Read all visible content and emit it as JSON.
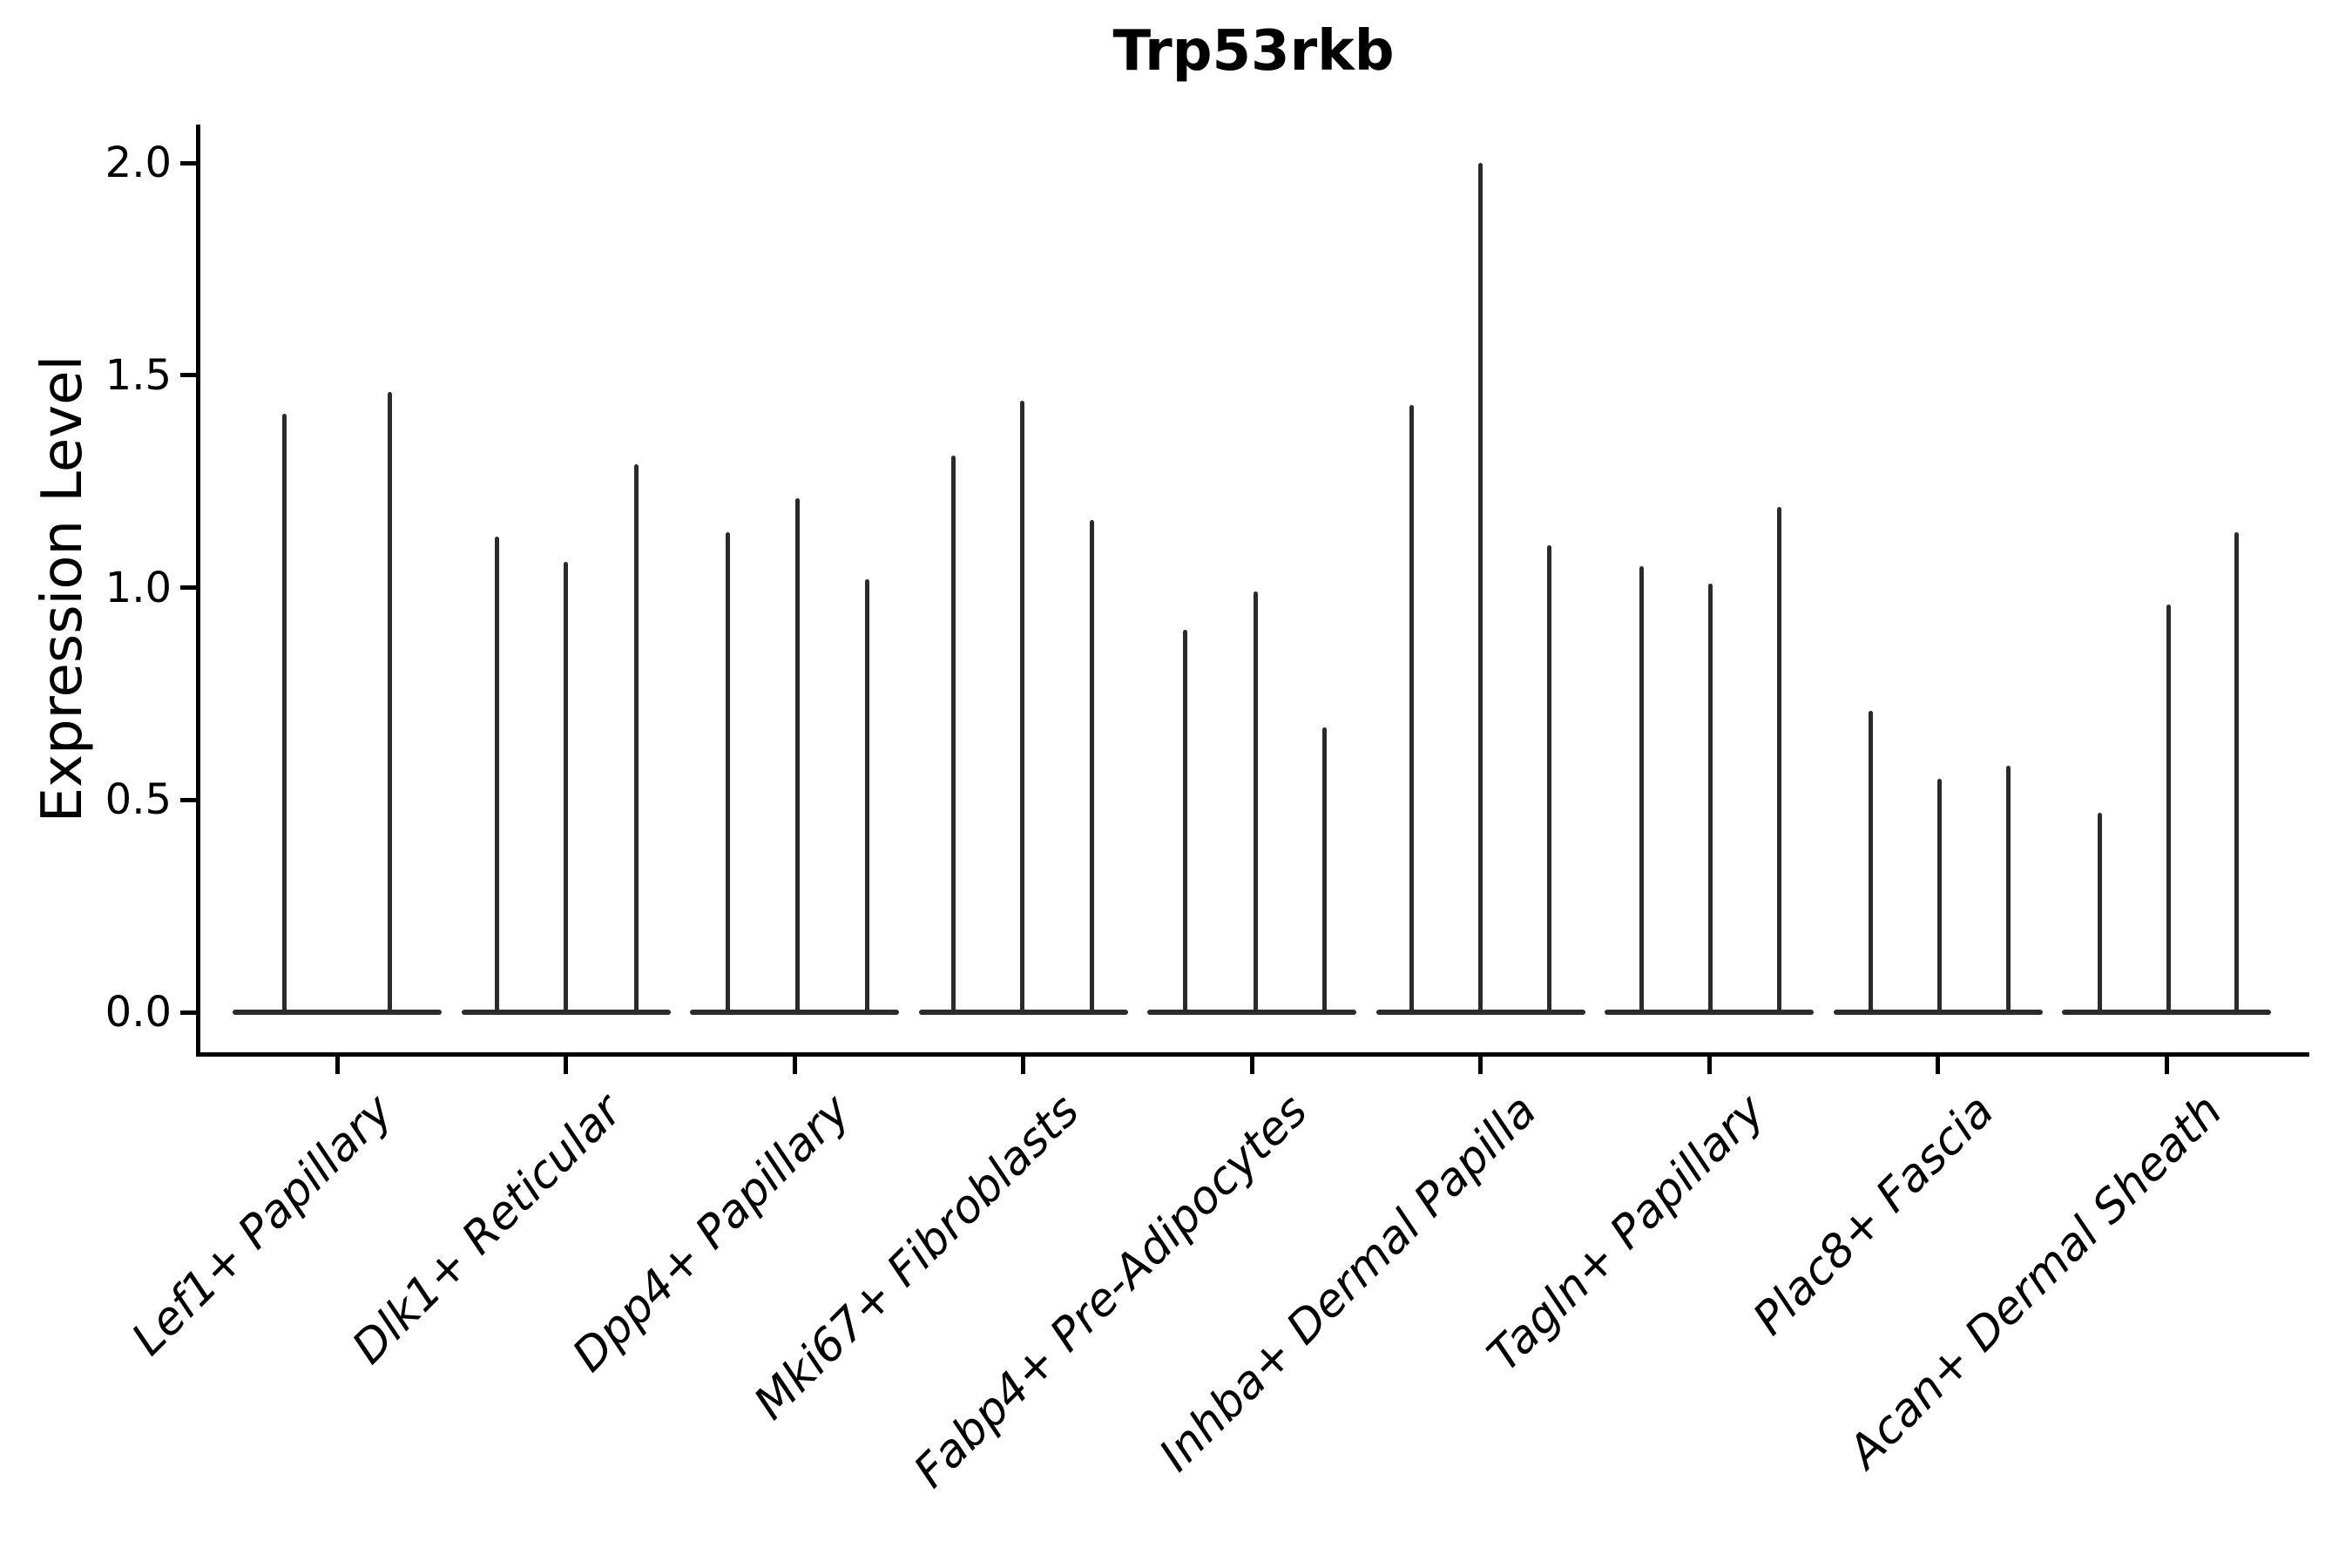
{
  "title": "Trp53rkb",
  "axes": {
    "ylabel": "Expression Level",
    "ytick_labels": [
      "0.0",
      "0.5",
      "1.0",
      "1.5",
      "2.0"
    ]
  },
  "colors": {
    "violin_line": "#2b2b2b",
    "axis": "#000000",
    "background": "#ffffff"
  },
  "chart_data": {
    "type": "violin",
    "title": "Trp53rkb",
    "xlabel": "",
    "ylabel": "Expression Level",
    "yticks": [
      0.0,
      0.5,
      1.0,
      1.5,
      2.0
    ],
    "ylim": [
      -0.1,
      2.09
    ],
    "grid": false,
    "legend_position": "none",
    "description": "Collapsed (needle-like) violins of gene expression; each category shows a flat base at 0 with thin spikes rising to the maximum expression of each sub-violin.",
    "categories": [
      "Lef1+ Papillary",
      "Dlk1+ Reticular",
      "Dpp4+ Papillary",
      "Mki67+ Fibroblasts",
      "Fabp4+ Pre-Adipocytes",
      "Inhba+ Dermal Papilla",
      "Tagln+ Papillary",
      "Plac8+ Fascia",
      "Acan+ Dermal Sheath"
    ],
    "groups": [
      {
        "label": "Lef1+ Papillary",
        "violins": [
          {
            "dx": -61,
            "max": 1.41
          },
          {
            "dx": 60,
            "max": 1.46
          }
        ]
      },
      {
        "label": "Dlk1+ Reticular",
        "violins": [
          {
            "dx": -79,
            "max": 1.12
          },
          {
            "dx": 0,
            "max": 1.06
          },
          {
            "dx": 81,
            "max": 1.29
          }
        ]
      },
      {
        "label": "Dpp4+ Papillary",
        "violins": [
          {
            "dx": -77,
            "max": 1.13
          },
          {
            "dx": 3,
            "max": 1.21
          },
          {
            "dx": 83,
            "max": 1.02
          }
        ]
      },
      {
        "label": "Mki67+ Fibroblasts",
        "violins": [
          {
            "dx": -80,
            "max": 1.31
          },
          {
            "dx": -1,
            "max": 1.44
          },
          {
            "dx": 79,
            "max": 1.16
          }
        ]
      },
      {
        "label": "Fabp4+ Pre-Adipocytes",
        "violins": [
          {
            "dx": -77,
            "max": 0.9
          },
          {
            "dx": 4,
            "max": 0.99
          },
          {
            "dx": 83,
            "max": 0.67
          }
        ]
      },
      {
        "label": "Inhba+ Dermal Papilla",
        "violins": [
          {
            "dx": -79,
            "max": 1.43
          },
          {
            "dx": 0,
            "max": 2.0
          },
          {
            "dx": 79,
            "max": 1.1
          }
        ]
      },
      {
        "label": "Tagln+ Papillary",
        "violins": [
          {
            "dx": -78,
            "max": 1.05
          },
          {
            "dx": 1,
            "max": 1.01
          },
          {
            "dx": 80,
            "max": 1.19
          }
        ]
      },
      {
        "label": "Plac8+ Fascia",
        "violins": [
          {
            "dx": -77,
            "max": 0.71
          },
          {
            "dx": 2,
            "max": 0.55
          },
          {
            "dx": 81,
            "max": 0.58
          }
        ]
      },
      {
        "label": "Acan+ Dermal Sheath",
        "violins": [
          {
            "dx": -77,
            "max": 0.47
          },
          {
            "dx": 2,
            "max": 0.96
          },
          {
            "dx": 80,
            "max": 1.13
          }
        ]
      }
    ]
  }
}
